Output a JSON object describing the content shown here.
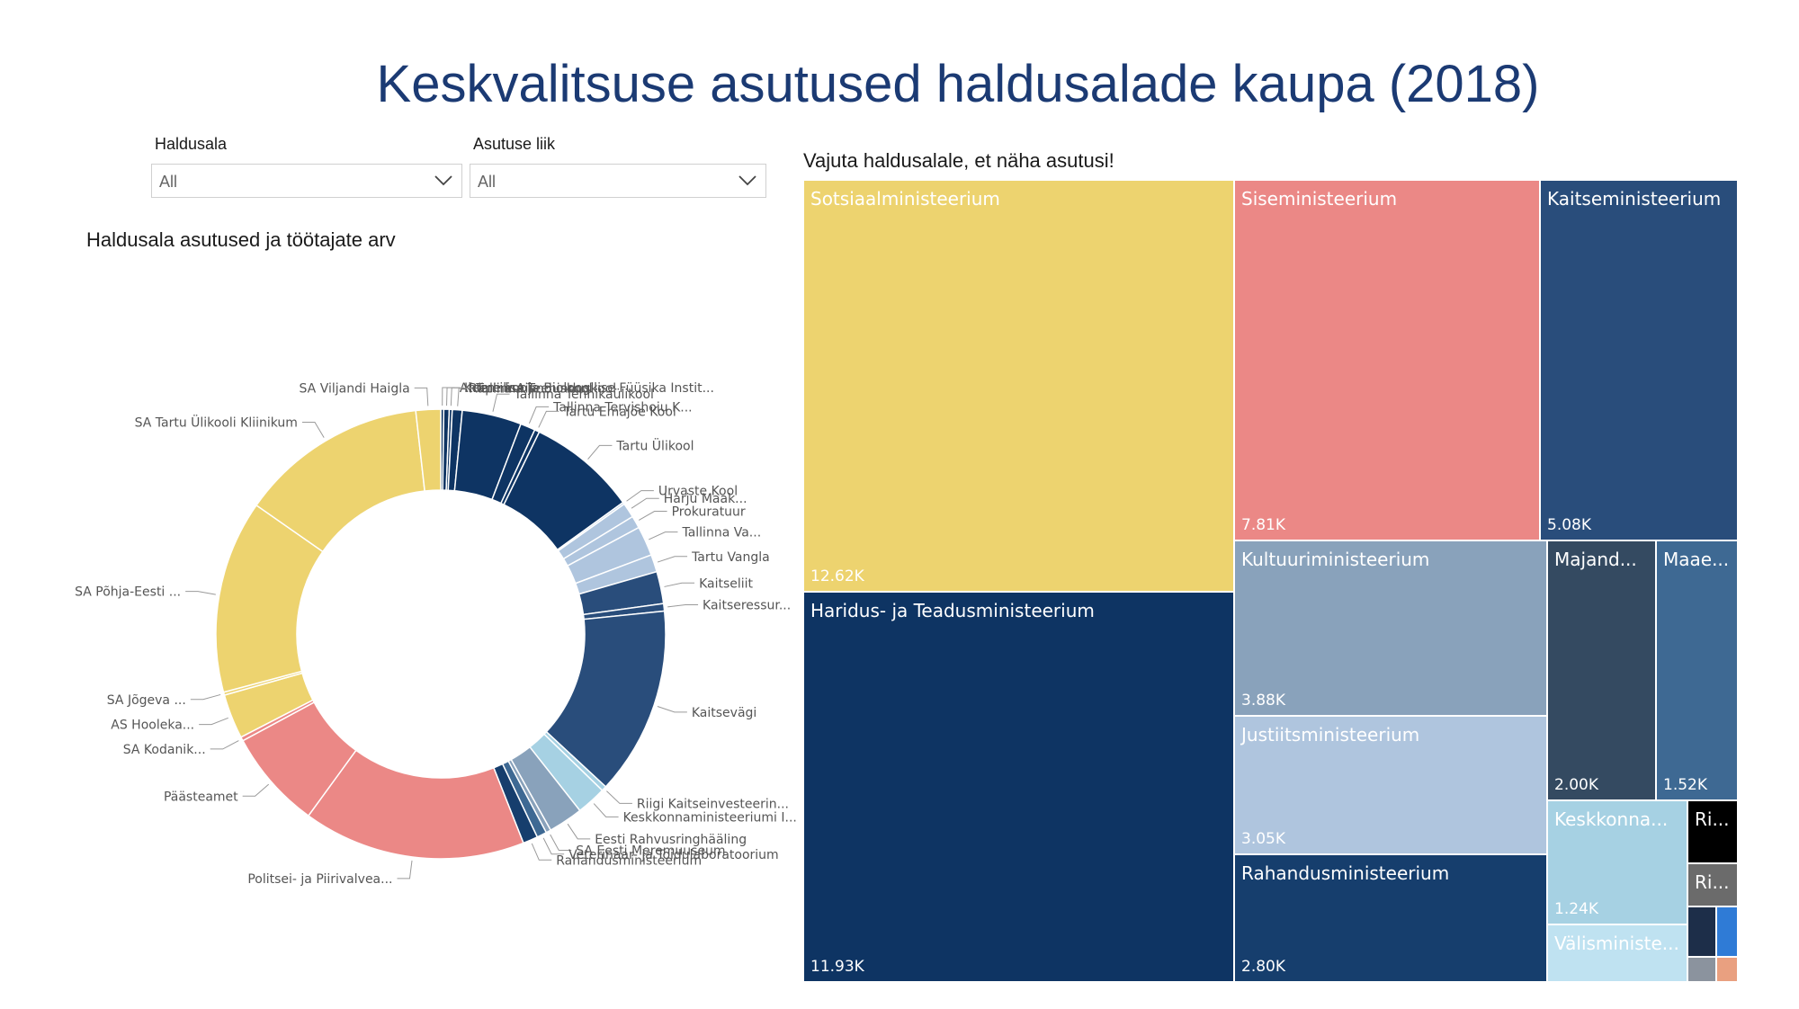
{
  "title": "Keskvalitsuse asutused haldusalade kaupa (2018)",
  "filters": [
    {
      "label": "Haldusala",
      "value": "All"
    },
    {
      "label": "Asutuse liik",
      "value": "All"
    }
  ],
  "icons": {
    "dropdown": "chevron-down-icon"
  },
  "donut_title": "Haldusala asutused ja töötajate arv",
  "treemap_title": "Vajuta haldusalale, et näha asutusi!",
  "colors": {
    "sotsiaal": "#EDD36F",
    "sise": "#EB8886",
    "kaitse": "#294D7B",
    "haridus": "#0E3463",
    "kultuur": "#89A2BB",
    "justiits": "#AFC5DE",
    "rahandus": "#163E6D",
    "majandus": "#344A61",
    "maaelu": "#3E6993",
    "keskkond": "#A6D1E3",
    "valis": "#BFE2F1",
    "riigikantselei": "#000000",
    "riigikogu": "#6B6B6B"
  },
  "chart_data": [
    {
      "type": "pie",
      "title": "Haldusala asutused ja töötajate arv",
      "note": "donut",
      "slices": [
        {
          "label": "Ahtme kool",
          "group": "Haridus- ja Teadusministeerium",
          "value": 60
        },
        {
          "label": "Keemilise ja Bioloogilise Füüsika Instit...",
          "group": "Haridus- ja Teadusministeerium",
          "value": 110
        },
        {
          "label": "Räpina Aianduskool",
          "group": "Haridus- ja Teadusministeerium",
          "value": 60
        },
        {
          "label": "Tallinna Teeninduskool",
          "group": "Haridus- ja Teadusministeerium",
          "value": 200
        },
        {
          "label": "Tallinna Tehnikaülikool",
          "group": "Haridus- ja Teadusministeerium",
          "value": 1200
        },
        {
          "label": "Tallinna Tervishoiu K...",
          "group": "Haridus- ja Teadusministeerium",
          "value": 300
        },
        {
          "label": "Tartu Emajõe Kool",
          "group": "Haridus- ja Teadusministeerium",
          "value": 100
        },
        {
          "label": "Tartu Ülikool",
          "group": "Haridus- ja Teadusministeerium",
          "value": 2200
        },
        {
          "label": "Urvaste Kool",
          "group": "Justiitsministeerium",
          "value": 40
        },
        {
          "label": "Harju Maak...",
          "group": "Justiitsministeerium",
          "value": 300
        },
        {
          "label": "Prokuratuur",
          "group": "Justiitsministeerium",
          "value": 250
        },
        {
          "label": "Tallinna Va...",
          "group": "Justiitsministeerium",
          "value": 600
        },
        {
          "label": "Tartu Vangla",
          "group": "Justiitsministeerium",
          "value": 350
        },
        {
          "label": "Kaitseliit",
          "group": "Kaitseministeerium",
          "value": 650
        },
        {
          "label": "Kaitseressur...",
          "group": "Kaitseministeerium",
          "value": 150
        },
        {
          "label": "Kaitsevägi",
          "group": "Kaitseministeerium",
          "value": 3800
        },
        {
          "label": "Riigi Kaitseinvesteerin...",
          "group": "Keskkonnaministeerium",
          "value": 100
        },
        {
          "label": "Keskkonnaministeeriumi I...",
          "group": "Keskkonnaministeerium",
          "value": 600
        },
        {
          "label": "Eesti Rahvusringhääling",
          "group": "Kultuuriministeerium",
          "value": 700
        },
        {
          "label": "SA Eesti Meremuuseum",
          "group": "Kultuuriministeerium",
          "value": 100
        },
        {
          "label": "Veterinaar- ja Toidulaboratoorium",
          "group": "Maaeluministeerium",
          "value": 200
        },
        {
          "label": "Rahandusministeerium",
          "group": "Rahandusministeerium",
          "value": 300
        },
        {
          "label": "Politsei- ja Piirivalvea...",
          "group": "Siseministeerium",
          "value": 4500
        },
        {
          "label": "Päästeamet",
          "group": "Siseministeerium",
          "value": 2000
        },
        {
          "label": "SA Kodanik...",
          "group": "Siseministeerium",
          "value": 80
        },
        {
          "label": "AS Hooleka...",
          "group": "Sotsiaalministeerium",
          "value": 900
        },
        {
          "label": "SA Jõgeva ...",
          "group": "Sotsiaalministeerium",
          "value": 60
        },
        {
          "label": "SA Põhja-Eesti ...",
          "group": "Sotsiaalministeerium",
          "value": 3900
        },
        {
          "label": "SA Tartu Ülikooli Kliinikum",
          "group": "Sotsiaalministeerium",
          "value": 3800
        },
        {
          "label": "SA Viljandi Haigla",
          "group": "Sotsiaalministeerium",
          "value": 500
        }
      ]
    },
    {
      "type": "treemap",
      "title": "Vajuta haldusalale, et näha asutusi!",
      "items": [
        {
          "label": "Sotsiaalministeerium",
          "value_label": "12.62K",
          "value": 12620
        },
        {
          "label": "Haridus- ja Teadusministeerium",
          "value_label": "11.93K",
          "value": 11930
        },
        {
          "label": "Siseministeerium",
          "value_label": "7.81K",
          "value": 7810
        },
        {
          "label": "Kaitseministeerium",
          "value_label": "5.08K",
          "value": 5080
        },
        {
          "label": "Kultuuriministeerium",
          "value_label": "3.88K",
          "value": 3880
        },
        {
          "label": "Justiitsministeerium",
          "value_label": "3.05K",
          "value": 3050
        },
        {
          "label": "Rahandusministeerium",
          "value_label": "2.80K",
          "value": 2800
        },
        {
          "label": "Majand...",
          "value_label": "2.00K",
          "value": 2000
        },
        {
          "label": "Maae...",
          "value_label": "1.52K",
          "value": 1520
        },
        {
          "label": "Keskkonna...",
          "value_label": "1.24K",
          "value": 1240
        },
        {
          "label": "Välisministe...",
          "value_label": "",
          "value": 700
        },
        {
          "label": "Ri...",
          "value_label": "",
          "value": 200
        },
        {
          "label": "Ri...",
          "value_label": "",
          "value": 150
        }
      ]
    }
  ]
}
